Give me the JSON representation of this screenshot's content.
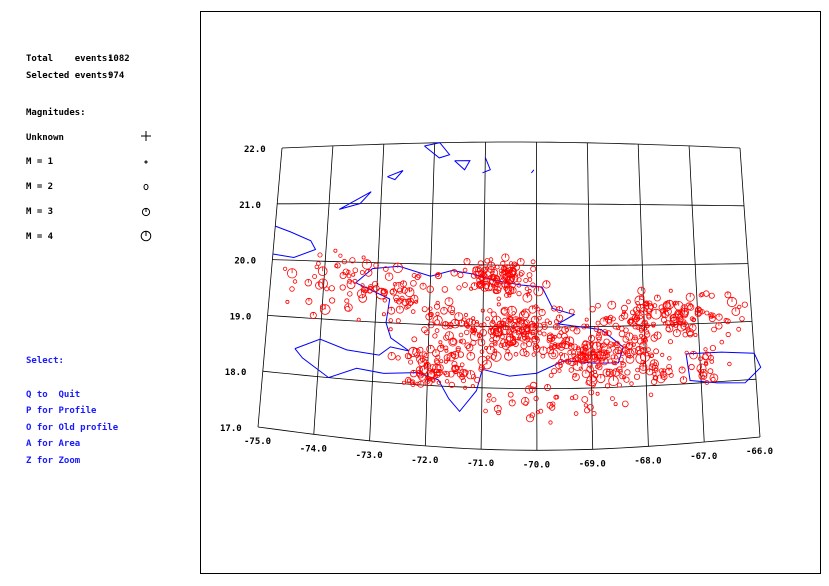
{
  "stats": {
    "total_label": "Total    events:",
    "total_value": "1082",
    "selected_label": "Selected events:",
    "selected_value": "974"
  },
  "legend": {
    "title": "Magnitudes:",
    "items": [
      {
        "label": "Unknown",
        "icon": "plus-icon"
      },
      {
        "label": "M = 1",
        "icon": "tiny-dot-icon"
      },
      {
        "label": "M = 2",
        "icon": "small-circle-icon"
      },
      {
        "label": "M = 3",
        "icon": "medium-circle-icon"
      },
      {
        "label": "M = 4",
        "icon": "large-circle-icon"
      }
    ]
  },
  "menu": {
    "title": "Select:",
    "items": [
      {
        "key": "Q",
        "label": "Q to  Quit"
      },
      {
        "key": "P",
        "label": "P for Profile"
      },
      {
        "key": "O",
        "label": "O for Old profile"
      },
      {
        "key": "A",
        "label": "A for Area"
      },
      {
        "key": "Z",
        "label": "Z for Zoom"
      }
    ]
  },
  "map": {
    "lon_ticks": [
      "-75.0",
      "-74.0",
      "-73.0",
      "-72.0",
      "-71.0",
      "-70.0",
      "-69.0",
      "-68.0",
      "-67.0",
      "-66.0"
    ],
    "lat_ticks": [
      "17.0",
      "18.0",
      "19.0",
      "20.0",
      "21.0",
      "22.0"
    ],
    "lon_range": [
      -75.0,
      -66.0
    ],
    "lat_range": [
      17.0,
      22.0
    ],
    "colors": {
      "grid": "#000000",
      "coastline": "#0000ff",
      "events": "#ff0000",
      "menu_text": "#1a1aff"
    }
  }
}
